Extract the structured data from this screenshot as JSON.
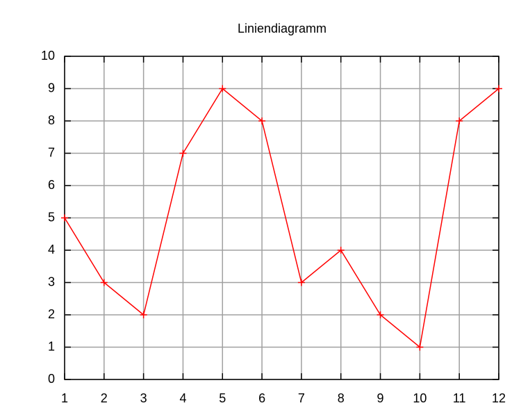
{
  "chart_data": {
    "type": "line",
    "title": "Liniendiagramm",
    "x": [
      1,
      2,
      3,
      4,
      5,
      6,
      7,
      8,
      9,
      10,
      11,
      12
    ],
    "values": [
      5,
      3,
      2,
      7,
      9,
      8,
      3,
      4,
      2,
      1,
      8,
      9
    ],
    "color": "#ff0000",
    "xlim": [
      1,
      12
    ],
    "xticks": [
      1,
      2,
      3,
      4,
      5,
      6,
      7,
      8,
      9,
      10,
      11,
      12
    ],
    "ylim": [
      0,
      10
    ],
    "yticks": [
      0,
      1,
      2,
      3,
      4,
      5,
      6,
      7,
      8,
      9,
      10
    ],
    "grid": true
  }
}
